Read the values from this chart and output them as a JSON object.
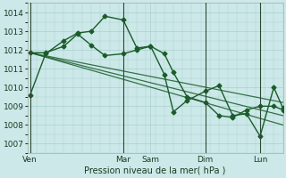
{
  "background_color": "#cce8e8",
  "grid_color": "#aad0d0",
  "line_color": "#1a5c2a",
  "xlabel": "Pression niveau de la mer( hPa )",
  "ylim": [
    1006.5,
    1014.5
  ],
  "yticks": [
    1007,
    1008,
    1009,
    1010,
    1011,
    1012,
    1013,
    1014
  ],
  "xlim": [
    0,
    28
  ],
  "day_labels": [
    "Ven",
    "Mar",
    "Sam",
    "Dim",
    "Lun"
  ],
  "day_positions": [
    0.3,
    10.5,
    13.5,
    19.5,
    25.5
  ],
  "vlines": [
    0.3,
    10.5,
    19.5,
    25.5
  ],
  "series": [
    {
      "x": [
        0.3,
        2,
        4,
        5.5,
        7,
        8.5,
        10.5,
        12,
        13.5,
        15,
        16,
        17.5,
        19.5,
        21,
        22.5,
        24,
        25.5,
        27,
        28
      ],
      "y": [
        1009.6,
        1011.8,
        1012.5,
        1012.9,
        1013.0,
        1013.8,
        1013.6,
        1012.1,
        1012.2,
        1010.7,
        1008.7,
        1009.3,
        1009.8,
        1010.1,
        1008.5,
        1008.6,
        1007.4,
        1010.0,
        1008.9
      ],
      "marker": "D",
      "markersize": 2.5,
      "linewidth": 1.0
    },
    {
      "x": [
        0.3,
        2,
        4,
        5.5,
        7,
        8.5,
        10.5,
        12,
        13.5,
        15,
        16,
        17.5,
        19.5,
        21,
        22.5,
        24,
        25.5,
        27,
        28
      ],
      "y": [
        1011.85,
        1011.85,
        1012.2,
        1012.85,
        1012.25,
        1011.7,
        1011.8,
        1012.0,
        1012.2,
        1011.8,
        1010.8,
        1009.5,
        1009.2,
        1008.5,
        1008.4,
        1008.8,
        1009.0,
        1009.0,
        1008.8
      ],
      "marker": "D",
      "markersize": 2.5,
      "linewidth": 1.0
    },
    {
      "x": [
        0.3,
        28
      ],
      "y": [
        1011.85,
        1009.2
      ],
      "marker": null,
      "linewidth": 0.9
    },
    {
      "x": [
        0.3,
        28
      ],
      "y": [
        1011.85,
        1008.5
      ],
      "marker": null,
      "linewidth": 0.9
    },
    {
      "x": [
        0.3,
        28
      ],
      "y": [
        1011.85,
        1008.0
      ],
      "marker": null,
      "linewidth": 0.9
    }
  ]
}
